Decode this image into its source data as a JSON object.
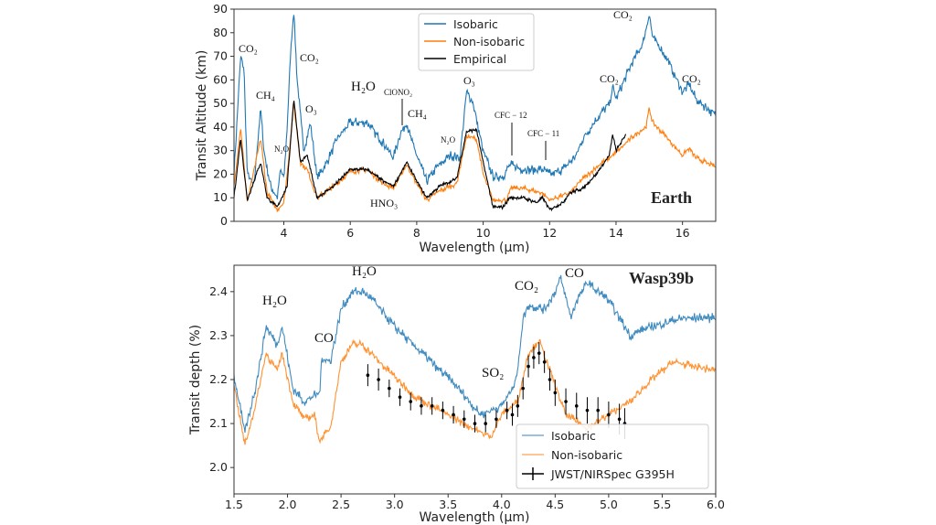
{
  "chart_data": [
    {
      "type": "line",
      "panel_label": "Earth",
      "xlabel": "Wavelength (µm)",
      "ylabel": "Transit Altitude (km)",
      "xlim": [
        2.5,
        17
      ],
      "ylim": [
        0,
        90
      ],
      "xticks": [
        4,
        6,
        8,
        10,
        12,
        14,
        16
      ],
      "xtick_labels": [
        "4",
        "6",
        "8",
        "10",
        "12",
        "14",
        "16"
      ],
      "yticks": [
        0,
        10,
        20,
        30,
        40,
        50,
        60,
        70,
        80,
        90
      ],
      "ytick_labels": [
        "0",
        "10",
        "20",
        "30",
        "40",
        "50",
        "60",
        "70",
        "80",
        "90"
      ],
      "grid": false,
      "legend_position": "top-center",
      "series": [
        {
          "name": "Isobaric",
          "color": "#1f77b4",
          "x": [
            2.5,
            2.6,
            2.7,
            2.8,
            2.9,
            3.1,
            3.3,
            3.4,
            3.6,
            3.8,
            3.9,
            4.0,
            4.1,
            4.2,
            4.3,
            4.4,
            4.6,
            4.8,
            5.0,
            5.3,
            5.6,
            6.0,
            6.5,
            7.0,
            7.3,
            7.5,
            7.7,
            7.8,
            8.0,
            8.3,
            8.6,
            9.0,
            9.3,
            9.5,
            9.7,
            10.0,
            10.3,
            10.6,
            10.8,
            11.2,
            11.8,
            12.0,
            12.4,
            12.8,
            13.0,
            13.5,
            13.8,
            13.9,
            14.0,
            14.5,
            14.8,
            15.0,
            15.1,
            15.5,
            16.0,
            16.2,
            16.4,
            17.0
          ],
          "y": [
            20,
            45,
            70,
            65,
            20,
            15,
            48,
            30,
            15,
            10,
            22,
            18,
            40,
            70,
            90,
            60,
            30,
            42,
            18,
            25,
            35,
            42,
            42,
            33,
            27,
            37,
            42,
            36,
            28,
            17,
            23,
            28,
            27,
            55,
            50,
            30,
            19,
            19,
            24,
            22,
            22,
            20,
            22,
            28,
            35,
            45,
            50,
            57,
            52,
            68,
            75,
            88,
            78,
            70,
            55,
            58,
            52,
            45
          ]
        },
        {
          "name": "Non-isobaric",
          "color": "#ff7f0e",
          "x": [
            2.5,
            2.7,
            2.9,
            3.3,
            3.5,
            3.8,
            4.0,
            4.1,
            4.3,
            4.5,
            4.7,
            5.0,
            5.5,
            6.0,
            6.5,
            7.0,
            7.3,
            7.7,
            8.0,
            8.3,
            8.7,
            9.2,
            9.5,
            9.8,
            10.0,
            10.3,
            10.7,
            10.85,
            11.2,
            11.8,
            12.0,
            12.6,
            13.0,
            13.5,
            14.0,
            14.5,
            14.9,
            15.0,
            15.1,
            15.5,
            16.0,
            16.2,
            16.4,
            17.0
          ],
          "y": [
            15,
            40,
            8,
            35,
            12,
            5,
            8,
            20,
            50,
            25,
            22,
            10,
            15,
            21,
            22,
            16,
            14,
            24,
            16,
            9,
            13,
            16,
            36,
            35,
            20,
            9,
            9,
            14,
            14,
            12,
            9,
            12,
            18,
            24,
            29,
            36,
            40,
            48,
            42,
            36,
            28,
            31,
            27,
            23
          ]
        },
        {
          "name": "Empirical",
          "color": "#000000",
          "x": [
            2.5,
            2.7,
            2.9,
            3.3,
            3.5,
            3.8,
            4.0,
            4.1,
            4.3,
            4.5,
            4.7,
            5.0,
            5.5,
            6.0,
            6.5,
            7.0,
            7.3,
            7.7,
            8.0,
            8.3,
            8.7,
            9.2,
            9.5,
            9.8,
            10.0,
            10.3,
            10.6,
            10.8,
            11.2,
            11.6,
            11.8,
            12.0,
            12.4,
            12.6,
            13.0,
            13.4,
            13.8,
            13.9,
            14.0,
            14.3
          ],
          "y": [
            10,
            35,
            9,
            25,
            10,
            6,
            12,
            15,
            52,
            25,
            28,
            10,
            15,
            22,
            22,
            17,
            15,
            25,
            17,
            10,
            15,
            18,
            38,
            39,
            25,
            6,
            6,
            10,
            10,
            8,
            10,
            5,
            8,
            12,
            14,
            20,
            28,
            37,
            30,
            37
          ]
        }
      ],
      "annotations": [
        "CO₂",
        "CH₄",
        "N₂O",
        "CO₂",
        "O₃",
        "H₂O",
        "ClONO₂",
        "CH₄",
        "HNO₃",
        "N₂O",
        "O₃",
        "CFC − 12",
        "CFC − 11",
        "CO₂",
        "CO₂",
        "CO₂"
      ]
    },
    {
      "type": "line",
      "panel_label": "Wasp39b",
      "xlabel": "Wavelength (µm)",
      "ylabel": "Transit depth (%)",
      "xlim": [
        1.5,
        6.0
      ],
      "ylim": [
        1.94,
        2.46
      ],
      "xticks": [
        1.5,
        2.0,
        2.5,
        3.0,
        3.5,
        4.0,
        4.5,
        5.0,
        5.5,
        6.0
      ],
      "xtick_labels": [
        "1.5",
        "2.0",
        "2.5",
        "3.0",
        "3.5",
        "4.0",
        "4.5",
        "5.0",
        "5.5",
        "6.0"
      ],
      "yticks": [
        2.0,
        2.1,
        2.2,
        2.3,
        2.4
      ],
      "ytick_labels": [
        "2.0",
        "2.1",
        "2.2",
        "2.3",
        "2.4"
      ],
      "grid": false,
      "legend_position": "bottom-right",
      "series": [
        {
          "name": "Isobaric",
          "color": "#1f77b4",
          "x": [
            1.5,
            1.6,
            1.7,
            1.8,
            1.9,
            1.95,
            2.05,
            2.15,
            2.3,
            2.32,
            2.4,
            2.5,
            2.6,
            2.7,
            2.8,
            3.0,
            3.3,
            3.6,
            3.8,
            4.0,
            4.1,
            4.15,
            4.2,
            4.25,
            4.4,
            4.5,
            4.55,
            4.65,
            4.7,
            4.8,
            5.0,
            5.2,
            5.4,
            5.7,
            6.0
          ],
          "y": [
            2.21,
            2.08,
            2.18,
            2.32,
            2.28,
            2.32,
            2.18,
            2.15,
            2.17,
            2.25,
            2.24,
            2.36,
            2.4,
            2.4,
            2.38,
            2.32,
            2.25,
            2.18,
            2.12,
            2.14,
            2.18,
            2.22,
            2.34,
            2.37,
            2.36,
            2.4,
            2.43,
            2.34,
            2.38,
            2.42,
            2.38,
            2.3,
            2.32,
            2.34,
            2.34
          ]
        },
        {
          "name": "Non-isobaric",
          "color": "#ff7f0e",
          "x": [
            1.5,
            1.6,
            1.7,
            1.8,
            1.9,
            1.95,
            2.05,
            2.15,
            2.25,
            2.3,
            2.4,
            2.5,
            2.6,
            2.7,
            2.9,
            3.2,
            3.5,
            3.8,
            3.9,
            4.0,
            4.15,
            4.25,
            4.35,
            4.45,
            4.6,
            4.8,
            5.0,
            5.2,
            5.4,
            5.6,
            6.0
          ],
          "y": [
            2.19,
            2.05,
            2.14,
            2.26,
            2.22,
            2.26,
            2.15,
            2.11,
            2.12,
            2.06,
            2.09,
            2.24,
            2.28,
            2.28,
            2.23,
            2.16,
            2.12,
            2.08,
            2.07,
            2.12,
            2.15,
            2.26,
            2.29,
            2.22,
            2.12,
            2.09,
            2.12,
            2.15,
            2.2,
            2.24,
            2.22
          ]
        },
        {
          "name": "JWST/NIRSpec G395H",
          "color": "#000000",
          "kind": "errorbar",
          "x": [
            2.75,
            2.85,
            2.95,
            3.05,
            3.15,
            3.25,
            3.35,
            3.45,
            3.55,
            3.65,
            3.75,
            3.85,
            3.95,
            4.05,
            4.1,
            4.15,
            4.2,
            4.25,
            4.3,
            4.35,
            4.4,
            4.45,
            4.5,
            4.6,
            4.7,
            4.8,
            4.9,
            5.0,
            5.1,
            5.15
          ],
          "y": [
            2.21,
            2.2,
            2.18,
            2.16,
            2.15,
            2.14,
            2.14,
            2.13,
            2.12,
            2.11,
            2.1,
            2.1,
            2.11,
            2.13,
            2.12,
            2.14,
            2.18,
            2.23,
            2.25,
            2.26,
            2.24,
            2.2,
            2.17,
            2.15,
            2.14,
            2.13,
            2.13,
            2.12,
            2.11,
            2.1
          ],
          "yerr": [
            0.025,
            0.025,
            0.02,
            0.02,
            0.02,
            0.02,
            0.02,
            0.02,
            0.02,
            0.02,
            0.02,
            0.02,
            0.02,
            0.02,
            0.025,
            0.025,
            0.025,
            0.025,
            0.025,
            0.025,
            0.025,
            0.025,
            0.03,
            0.03,
            0.03,
            0.03,
            0.03,
            0.03,
            0.035,
            0.035
          ]
        }
      ],
      "annotations": [
        "H₂O",
        "CO",
        "H₂O",
        "SO₂",
        "CO₂",
        "CO"
      ]
    }
  ]
}
